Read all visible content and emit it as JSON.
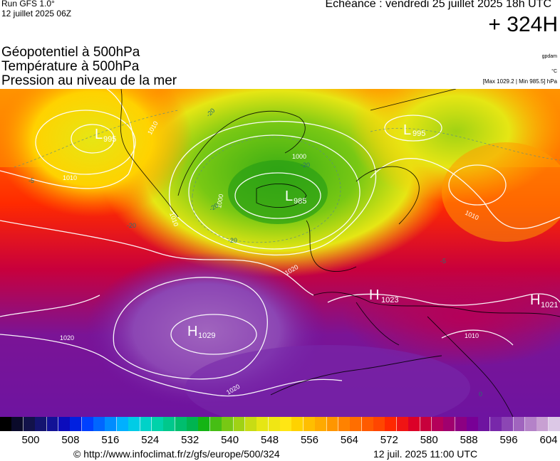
{
  "header": {
    "run": "Run GFS 1.0°",
    "run_date": "12 juillet 2025 06Z",
    "echeance": "Echéance : vendredi 25 juillet 2025 18h UTC",
    "forecast_hour": "+ 324H"
  },
  "fields": [
    "Géopotentiel à 500hPa",
    "Température à 500hPa",
    "Pression au niveau de la mer"
  ],
  "units": {
    "geopotential": "gpdam",
    "temperature": "°C",
    "pressure": "[Max 1029.2 | Min 985.5] hPa"
  },
  "map": {
    "pressure_centers": [
      {
        "type": "L",
        "value": "985"
      },
      {
        "type": "L",
        "value": "995"
      },
      {
        "type": "L",
        "value": "995"
      },
      {
        "type": "H",
        "value": "1029"
      },
      {
        "type": "H",
        "value": "1023"
      },
      {
        "type": "H",
        "value": "1021"
      }
    ],
    "isobar_labels": [
      "1000",
      "1000",
      "1010",
      "1010",
      "1010",
      "1010",
      "1010",
      "1020",
      "1020",
      "1020"
    ],
    "isotherm_labels": [
      "-20",
      "-20",
      "-20",
      "-20",
      "-20",
      "-5",
      "-5",
      "0"
    ]
  },
  "scale": {
    "colors": [
      "#000000",
      "#0a0a2a",
      "#12124a",
      "#141470",
      "#121296",
      "#0c0cbc",
      "#0020e0",
      "#0040ff",
      "#0066ff",
      "#008cff",
      "#00b0ff",
      "#00cce6",
      "#00d2c8",
      "#00d2aa",
      "#00c88c",
      "#00be6e",
      "#00b450",
      "#14b414",
      "#46be14",
      "#78c814",
      "#a0d214",
      "#c8dc14",
      "#e6e614",
      "#f0e614",
      "#ffe614",
      "#ffd200",
      "#ffbe00",
      "#ffaa00",
      "#ff9600",
      "#ff8200",
      "#ff6e00",
      "#ff5a00",
      "#ff4600",
      "#ff2800",
      "#f01414",
      "#dc0028",
      "#c8003c",
      "#b4005a",
      "#a0006e",
      "#8c0082",
      "#780096",
      "#6e14a0",
      "#7828aa",
      "#8c46b4",
      "#a064be",
      "#b482c8",
      "#c8a0d2",
      "#dcc8e6"
    ],
    "ticks": [
      "500",
      "508",
      "516",
      "524",
      "532",
      "540",
      "548",
      "556",
      "564",
      "572",
      "580",
      "588",
      "596",
      "604"
    ]
  },
  "footer": {
    "url": "© http://www.infoclimat.fr/z/gfs/europe/500/324",
    "timestamp": "12 juil. 2025 11:00 UTC"
  }
}
